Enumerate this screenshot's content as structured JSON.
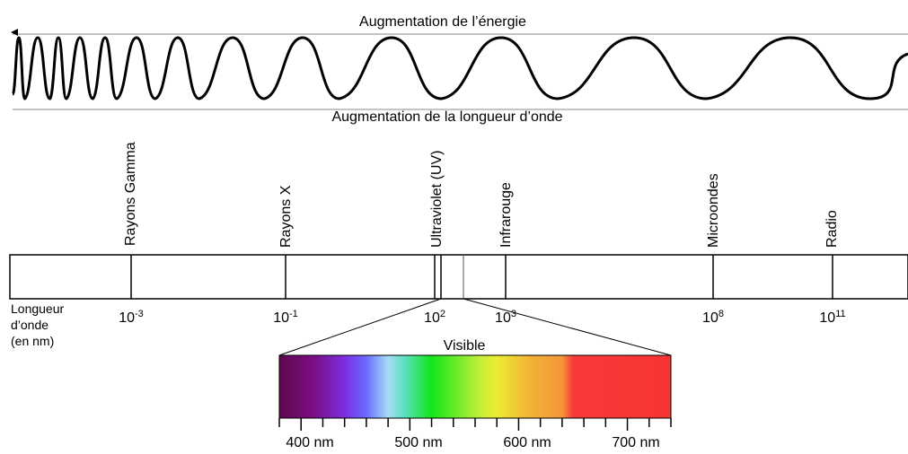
{
  "titles": {
    "energy": "Augmentation de l’énergie",
    "wavelength": "Augmentation de la longueur d’onde"
  },
  "bands": [
    {
      "id": "gamma",
      "label": "Rayons Gamma"
    },
    {
      "id": "xray",
      "label": "Rayons X"
    },
    {
      "id": "uv",
      "label": "Ultraviolet (UV)"
    },
    {
      "id": "ir",
      "label": "Infrarouge"
    },
    {
      "id": "micro",
      "label": "Microondes"
    },
    {
      "id": "radio",
      "label": "Radio"
    }
  ],
  "axis": {
    "label_lines": [
      "Longueur",
      "d’onde",
      "(en nm)"
    ],
    "ticks": [
      {
        "base": "10",
        "exp": "-3"
      },
      {
        "base": "10",
        "exp": "-1"
      },
      {
        "base": "10",
        "exp": "2"
      },
      {
        "base": "10",
        "exp": "3"
      },
      {
        "base": "10",
        "exp": "8"
      },
      {
        "base": "10",
        "exp": "11"
      }
    ]
  },
  "visible": {
    "title": "Visible",
    "range_nm": [
      380,
      740
    ],
    "scale_labels": [
      "400 nm",
      "500 nm",
      "600 nm",
      "700 nm"
    ],
    "gradient": [
      {
        "nm": 380,
        "color": "#5e0a4e"
      },
      {
        "nm": 410,
        "color": "#7a0c80"
      },
      {
        "nm": 440,
        "color": "#7b2ee0"
      },
      {
        "nm": 460,
        "color": "#6a6bff"
      },
      {
        "nm": 480,
        "color": "#a6dcf5"
      },
      {
        "nm": 495,
        "color": "#59e0c0"
      },
      {
        "nm": 520,
        "color": "#12e61a"
      },
      {
        "nm": 565,
        "color": "#c6ef3a"
      },
      {
        "nm": 580,
        "color": "#ecec32"
      },
      {
        "nm": 610,
        "color": "#f2b335"
      },
      {
        "nm": 640,
        "color": "#f4963a"
      },
      {
        "nm": 650,
        "color": "#f83a3a"
      },
      {
        "nm": 740,
        "color": "#f73434"
      }
    ]
  }
}
